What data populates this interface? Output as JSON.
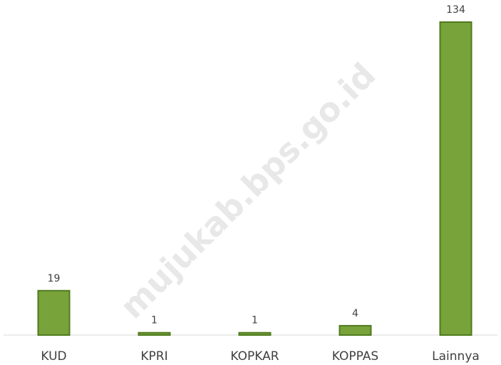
{
  "chart_data": {
    "type": "bar",
    "categories": [
      "KUD",
      "KPRI",
      "KOPKAR",
      "KOPPAS",
      "Lainnya"
    ],
    "values": [
      19,
      1,
      1,
      4,
      134
    ],
    "color": "#78a33a",
    "watermark": "mujukab.bps.go.id"
  }
}
